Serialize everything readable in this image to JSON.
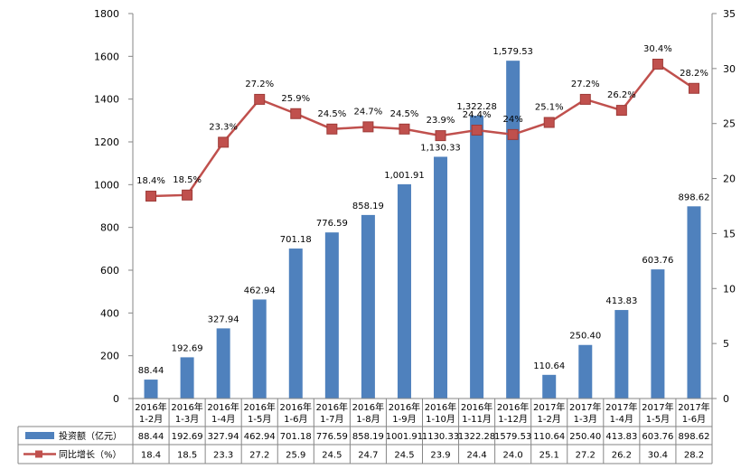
{
  "chart_data": {
    "type": "bar",
    "categories": [
      "2016年\n1-2月",
      "2016年\n1-3月",
      "2016年\n1-4月",
      "2016年\n1-5月",
      "2016年\n1-6月",
      "2016年\n1-7月",
      "2016年\n1-8月",
      "2016年\n1-9月",
      "2016年\n1-10月",
      "2016年\n1-11月",
      "2016年\n1-12月",
      "2017年\n1-2月",
      "2017年\n1-3月",
      "2017年\n1-4月",
      "2017年\n1-5月",
      "2017年\n1-6月"
    ],
    "series": [
      {
        "name": "投资额（亿元）",
        "type": "bar",
        "axis": "left",
        "color": "#4f81bd",
        "values": [
          88.44,
          192.69,
          327.94,
          462.94,
          701.18,
          776.59,
          858.19,
          1001.91,
          1130.33,
          1322.28,
          1579.53,
          110.64,
          250.4,
          413.83,
          603.76,
          898.62
        ],
        "labels": [
          "88.44",
          "192.69",
          "327.94",
          "462.94",
          "701.18",
          "776.59",
          "858.19",
          "1,001.91",
          "1,130.33",
          "1,322.28",
          "1,579.53",
          "110.64",
          "250.40",
          "413.83",
          "603.76",
          "898.62"
        ],
        "table_values": [
          "88.44",
          "192.69",
          "327.94",
          "462.94",
          "701.18",
          "776.59",
          "858.19",
          "1001.91",
          "1130.33",
          "1322.28",
          "1579.53",
          "110.64",
          "250.40",
          "413.83",
          "603.76",
          "898.62"
        ]
      },
      {
        "name": "同比增长（%）",
        "type": "line",
        "axis": "right",
        "color": "#c0504d",
        "values": [
          18.4,
          18.5,
          23.3,
          27.2,
          25.9,
          24.5,
          24.7,
          24.5,
          23.9,
          24.4,
          24.0,
          25.1,
          27.2,
          26.2,
          30.4,
          28.2
        ],
        "labels": [
          "18.4%",
          "18.5%",
          "23.3%",
          "27.2%",
          "25.9%",
          "24.5%",
          "24.7%",
          "24.5%",
          "23.9%",
          "24.4%",
          "24%",
          "25.1%",
          "27.2%",
          "26.2%",
          "30.4%",
          "28.2%"
        ],
        "table_values": [
          "18.4",
          "18.5",
          "23.3",
          "27.2",
          "25.9",
          "24.5",
          "24.7",
          "24.5",
          "23.9",
          "24.4",
          "24.0",
          "25.1",
          "27.2",
          "26.2",
          "30.4",
          "28.2"
        ]
      }
    ],
    "y_left": {
      "range": [
        0,
        1800
      ],
      "ticks": [
        "0",
        "200",
        "400",
        "600",
        "800",
        "1000",
        "1200",
        "1400",
        "1600",
        "1800"
      ]
    },
    "y_right": {
      "range": [
        0,
        35
      ],
      "ticks": [
        "0",
        "5",
        "10",
        "15",
        "20",
        "25",
        "30",
        "35"
      ]
    },
    "grid": false,
    "legend": "data-table-bottom",
    "data_table": true
  }
}
